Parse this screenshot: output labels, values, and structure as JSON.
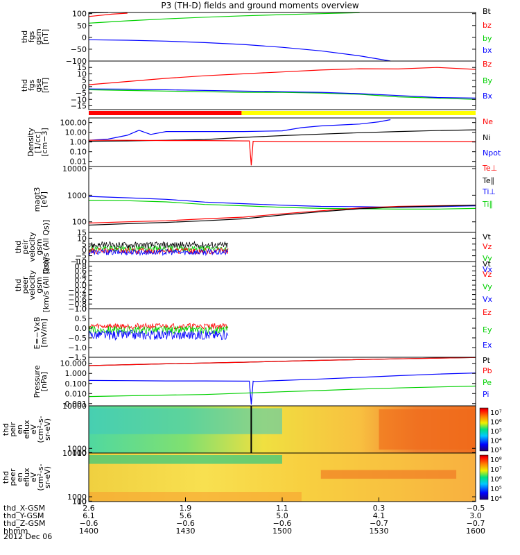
{
  "title": "P3 (TH-D) fields and ground moments overview",
  "date_label": "2012 Dec 06",
  "colors": {
    "black": "#000000",
    "red": "#ff0000",
    "green": "#00d000",
    "blue": "#0000ff",
    "yellow": "#ffff00"
  },
  "colorbar_labels": {
    "eflux_peir": [
      "10⁷",
      "10⁶",
      "10⁵",
      "10⁴",
      "10³"
    ],
    "eflux_peer": [
      "10⁸",
      "10⁷",
      "10⁶",
      "10⁵",
      "10⁴"
    ]
  },
  "chart_data": [
    {
      "type": "line",
      "id": "fgs_gsm",
      "ylabel": [
        "thd",
        "fgs",
        "gsm",
        "[nT]"
      ],
      "ylim": [
        -100,
        105
      ],
      "yticks": [
        "100",
        "50",
        "0",
        "−50",
        "−100"
      ],
      "ytick_values": [
        100,
        50,
        0,
        -50,
        -100
      ],
      "legend": [
        "Bt",
        "bz",
        "by",
        "bx"
      ],
      "legend_colors": [
        "black",
        "red",
        "green",
        "blue"
      ],
      "series": [
        {
          "name": "Bt",
          "color": "black",
          "x": [
            0,
            0.05
          ],
          "y": [
            103,
            105
          ]
        },
        {
          "name": "bz",
          "color": "red",
          "x": [
            0,
            0.06,
            0.1
          ],
          "y": [
            88,
            98,
            102
          ]
        },
        {
          "name": "by",
          "color": "green",
          "x": [
            0,
            0.1,
            0.2,
            0.3,
            0.4,
            0.5,
            0.6,
            0.7
          ],
          "y": [
            60,
            70,
            78,
            85,
            91,
            96,
            100,
            104
          ]
        },
        {
          "name": "bx",
          "color": "blue",
          "x": [
            0,
            0.1,
            0.2,
            0.3,
            0.4,
            0.5,
            0.6,
            0.7,
            0.78
          ],
          "y": [
            -10,
            -12,
            -16,
            -22,
            -30,
            -42,
            -57,
            -78,
            -100
          ]
        }
      ]
    },
    {
      "type": "line",
      "id": "fgs_gse",
      "ylabel": [
        "thd",
        "fgs",
        "gse",
        "[nT]"
      ],
      "ylim": [
        -18,
        20
      ],
      "yticks": [
        "15",
        "10",
        "5",
        "0",
        "−5",
        "−10",
        "−15"
      ],
      "ytick_values": [
        15,
        10,
        5,
        0,
        -5,
        -10,
        -15
      ],
      "legend": [
        "Bz",
        "By",
        "Bx"
      ],
      "legend_colors": [
        "red",
        "green",
        "blue"
      ],
      "series": [
        {
          "name": "Bz",
          "color": "red",
          "x": [
            0,
            0.1,
            0.2,
            0.3,
            0.4,
            0.5,
            0.6,
            0.7,
            0.8,
            0.9,
            1.0
          ],
          "y": [
            1.5,
            4,
            6.5,
            8.5,
            10,
            11.5,
            13,
            14,
            13.8,
            15,
            13.5
          ]
        },
        {
          "name": "By",
          "color": "green",
          "x": [
            0,
            0.1,
            0.2,
            0.3,
            0.4,
            0.5,
            0.6,
            0.7,
            0.8,
            0.9,
            1.0
          ],
          "y": [
            -2.5,
            -3,
            -3.5,
            -4,
            -4.5,
            -4.5,
            -5,
            -6,
            -8,
            -9,
            -10
          ]
        },
        {
          "name": "Bx",
          "color": "blue",
          "x": [
            0,
            0.1,
            0.2,
            0.3,
            0.4,
            0.5,
            0.6,
            0.7,
            0.8,
            0.9,
            1.0
          ],
          "y": [
            -1.8,
            -2,
            -2.5,
            -3,
            -3.5,
            -4,
            -4.5,
            -5.5,
            -7,
            -8.5,
            -9
          ]
        }
      ]
    },
    {
      "type": "line",
      "id": "density",
      "log": true,
      "ylabel": [
        "Density",
        "[1/cc]",
        "[cm−3]"
      ],
      "ylim": [
        0.003,
        300
      ],
      "yticks": [
        "100.00",
        "10.00",
        "1.00",
        "0.10",
        "0.01"
      ],
      "ytick_values": [
        100,
        10,
        1,
        0.1,
        0.01
      ],
      "legend": [
        "Ne",
        "Ni",
        "Npot"
      ],
      "legend_colors": [
        "red",
        "black",
        "blue"
      ],
      "series": [
        {
          "name": "Npot",
          "color": "blue",
          "x": [
            0,
            0.05,
            0.1,
            0.13,
            0.16,
            0.2,
            0.3,
            0.4,
            0.5,
            0.55,
            0.6,
            0.7,
            0.75,
            0.78
          ],
          "y": [
            1.5,
            2,
            5,
            16,
            6,
            12,
            12,
            12,
            14,
            30,
            45,
            70,
            120,
            200
          ]
        },
        {
          "name": "Ni",
          "color": "black",
          "x": [
            0,
            0.1,
            0.2,
            0.3,
            0.4,
            0.5,
            0.6,
            0.7,
            0.8,
            0.9,
            1.0
          ],
          "y": [
            1.2,
            1.3,
            1.5,
            1.8,
            3,
            4.5,
            6.5,
            9,
            12,
            15,
            18
          ]
        },
        {
          "name": "Ne",
          "color": "red",
          "x": [
            0,
            0.1,
            0.2,
            0.3,
            0.4,
            0.415,
            0.42,
            0.425,
            0.43,
            0.5,
            0.6,
            0.7,
            0.8,
            0.9,
            1.0
          ],
          "y": [
            1.5,
            1.5,
            1.4,
            1.4,
            1.3,
            1.3,
            0.004,
            1.2,
            1.2,
            1.1,
            1.1,
            1.1,
            1.1,
            1.1,
            1.1
          ]
        }
      ]
    },
    {
      "type": "line",
      "id": "temperature",
      "log": true,
      "ylabel": [
        "magt3",
        "[eV]"
      ],
      "ylim": [
        40,
        12000
      ],
      "yticks": [
        "10000",
        "1000",
        "100"
      ],
      "ytick_values": [
        10000,
        1000,
        100
      ],
      "legend": [
        "Te⊥",
        "Te∥",
        "Ti⊥",
        "Ti∥"
      ],
      "legend_colors": [
        "red",
        "black",
        "blue",
        "green"
      ],
      "series": [
        {
          "name": "Ti⊥",
          "color": "blue",
          "x": [
            0,
            0.1,
            0.2,
            0.3,
            0.4,
            0.5,
            0.6,
            0.7,
            0.8,
            0.9,
            1.0
          ],
          "y": [
            900,
            800,
            700,
            550,
            480,
            420,
            380,
            370,
            350,
            370,
            400
          ]
        },
        {
          "name": "Ti∥",
          "color": "green",
          "x": [
            0,
            0.1,
            0.2,
            0.3,
            0.4,
            0.5,
            0.6,
            0.7,
            0.8,
            0.9,
            1.0
          ],
          "y": [
            650,
            620,
            560,
            450,
            400,
            350,
            320,
            310,
            300,
            300,
            320
          ]
        },
        {
          "name": "Te⊥",
          "color": "red",
          "x": [
            0,
            0.1,
            0.2,
            0.3,
            0.4,
            0.5,
            0.6,
            0.7,
            0.8,
            0.9,
            1.0
          ],
          "y": [
            90,
            100,
            110,
            130,
            150,
            200,
            260,
            330,
            380,
            400,
            420
          ]
        },
        {
          "name": "Te∥",
          "color": "black",
          "x": [
            0,
            0.1,
            0.2,
            0.3,
            0.4,
            0.5,
            0.6,
            0.7,
            0.8,
            0.9,
            1.0
          ],
          "y": [
            75,
            85,
            95,
            110,
            130,
            180,
            240,
            310,
            360,
            390,
            420
          ]
        }
      ]
    },
    {
      "type": "line",
      "id": "peir_velocity",
      "ylabel": [
        "thd",
        "peir",
        "velocity",
        "gsm",
        "[km/s (All Qs)]"
      ],
      "ylim": [
        -10,
        15
      ],
      "yticks": [
        "15",
        "10",
        "5",
        "0",
        "−5",
        "−10"
      ],
      "ytick_values": [
        15,
        10,
        5,
        0,
        -5,
        -10
      ],
      "legend": [
        "Vt",
        "Vz",
        "Vy",
        "Vx"
      ],
      "legend_colors": [
        "black",
        "red",
        "green",
        "blue"
      ],
      "data_xmax": 0.36,
      "series": [
        {
          "name": "Vt",
          "color": "black",
          "mean": 4,
          "amp": 3
        },
        {
          "name": "Vy",
          "color": "green",
          "mean": 1,
          "amp": 2.5
        },
        {
          "name": "Vz",
          "color": "red",
          "mean": -1,
          "amp": 2.5
        },
        {
          "name": "Vx",
          "color": "blue",
          "mean": -2,
          "amp": 2.5
        }
      ]
    },
    {
      "type": "line",
      "id": "peer_velocity",
      "ylabel": [
        "thd",
        "peer",
        "velocity",
        "gsm",
        "[km/s (All Qs)]"
      ],
      "ylim": [
        -1,
        1
      ],
      "yticks": [
        "1.0",
        "0.8",
        "0.6",
        "0.4",
        "0.2",
        "0.0",
        "−0.2",
        "−0.4",
        "−0.6",
        "−0.8",
        "−1.0"
      ],
      "ytick_values": [
        1,
        0.8,
        0.6,
        0.4,
        0.2,
        0,
        -0.2,
        -0.4,
        -0.6,
        -0.8,
        -1
      ],
      "legend": [
        "Vt",
        "Vz",
        "Vy",
        "Vx"
      ],
      "legend_colors": [
        "black",
        "red",
        "green",
        "blue"
      ],
      "series": []
    },
    {
      "type": "line",
      "id": "efield",
      "ylabel": [
        "E=−VxB",
        "[mV/m]"
      ],
      "ylim": [
        -1.5,
        1.0
      ],
      "yticks": [
        "1.0",
        "0.5",
        "0.0",
        "−0.5",
        "−1.0",
        "−1.5"
      ],
      "ytick_values": [
        1,
        0.5,
        0,
        -0.5,
        -1,
        -1.5
      ],
      "legend": [
        "Ez",
        "Ey",
        "Ex"
      ],
      "legend_colors": [
        "red",
        "green",
        "blue"
      ],
      "data_xmax": 0.36,
      "series": [
        {
          "name": "Ez",
          "color": "red",
          "mean": 0.1,
          "amp": 0.15
        },
        {
          "name": "Ey",
          "color": "green",
          "mean": -0.1,
          "amp": 0.2
        },
        {
          "name": "Ex",
          "color": "blue",
          "mean": -0.35,
          "amp": 0.25
        }
      ]
    },
    {
      "type": "line",
      "id": "pressure",
      "log": true,
      "ylabel": [
        "Pressure",
        "[nPa]"
      ],
      "ylim": [
        0.0006,
        40
      ],
      "yticks": [
        "10.000",
        "1.000",
        "0.100",
        "0.010",
        "0.001"
      ],
      "ytick_values": [
        10,
        1,
        0.1,
        0.01,
        0.001
      ],
      "legend": [
        "Pt",
        "Pb",
        "Pe",
        "Pi"
      ],
      "legend_colors": [
        "black",
        "red",
        "green",
        "blue"
      ],
      "series": [
        {
          "name": "Pt",
          "color": "black",
          "x": [
            0,
            0.2,
            0.4,
            0.6,
            0.8,
            1.0
          ],
          "y": [
            6,
            9,
            13,
            20,
            28,
            38
          ]
        },
        {
          "name": "Pb",
          "color": "red",
          "x": [
            0,
            0.2,
            0.4,
            0.6,
            0.8,
            1.0
          ],
          "y": [
            6,
            9,
            13,
            20,
            28,
            38
          ]
        },
        {
          "name": "Pi",
          "color": "blue",
          "x": [
            0,
            0.1,
            0.2,
            0.3,
            0.4,
            0.415,
            0.42,
            0.425,
            0.43,
            0.5,
            0.6,
            0.7,
            0.8,
            0.9,
            1.0
          ],
          "y": [
            0.2,
            0.19,
            0.18,
            0.18,
            0.17,
            0.17,
            0.0008,
            0.17,
            0.16,
            0.2,
            0.28,
            0.4,
            0.6,
            0.85,
            1.1
          ]
        },
        {
          "name": "Pe",
          "color": "green",
          "x": [
            0,
            0.1,
            0.2,
            0.3,
            0.4,
            0.5,
            0.6,
            0.7,
            0.8,
            0.9,
            1.0
          ],
          "y": [
            0.005,
            0.006,
            0.007,
            0.008,
            0.011,
            0.015,
            0.02,
            0.028,
            0.036,
            0.045,
            0.055
          ]
        }
      ]
    },
    {
      "type": "heatmap",
      "id": "peir_eflux",
      "ylabel": [
        "thd",
        "peir",
        "en",
        "eflux",
        "eV",
        "(cm²-s-",
        "sr-eV)"
      ],
      "ylim": [
        10,
        10000
      ],
      "yticks": [
        "10000",
        "1000",
        "100",
        "10"
      ],
      "ytick_values": [
        10000,
        1000,
        100,
        10
      ],
      "colorbar": "eflux_peir"
    },
    {
      "type": "heatmap",
      "id": "peer_eflux",
      "ylabel": [
        "thd",
        "peer",
        "en",
        "eflux",
        "eV",
        "(cm²-s-",
        "sr-eV)"
      ],
      "ylim": [
        10,
        10000
      ],
      "yticks": [
        "10000",
        "1000",
        "100",
        "10"
      ],
      "ytick_values": [
        10000,
        1000,
        100,
        10
      ],
      "colorbar": "eflux_peer"
    }
  ],
  "xaxis": {
    "rows": [
      {
        "label": "thd_X-GSM",
        "values": [
          "2.6",
          "1.9",
          "1.1",
          "0.3",
          "−0.5"
        ]
      },
      {
        "label": "thd_Y-GSM",
        "values": [
          "6.1",
          "5.6",
          "5.0",
          "4.1",
          "3.0"
        ]
      },
      {
        "label": "thd_Z-GSM",
        "values": [
          "−0.6",
          "−0.6",
          "−0.6",
          "−0.7",
          "−0.7"
        ]
      },
      {
        "label": "hhmm",
        "values": [
          "1400",
          "1430",
          "1500",
          "1530",
          "1600"
        ]
      }
    ]
  }
}
